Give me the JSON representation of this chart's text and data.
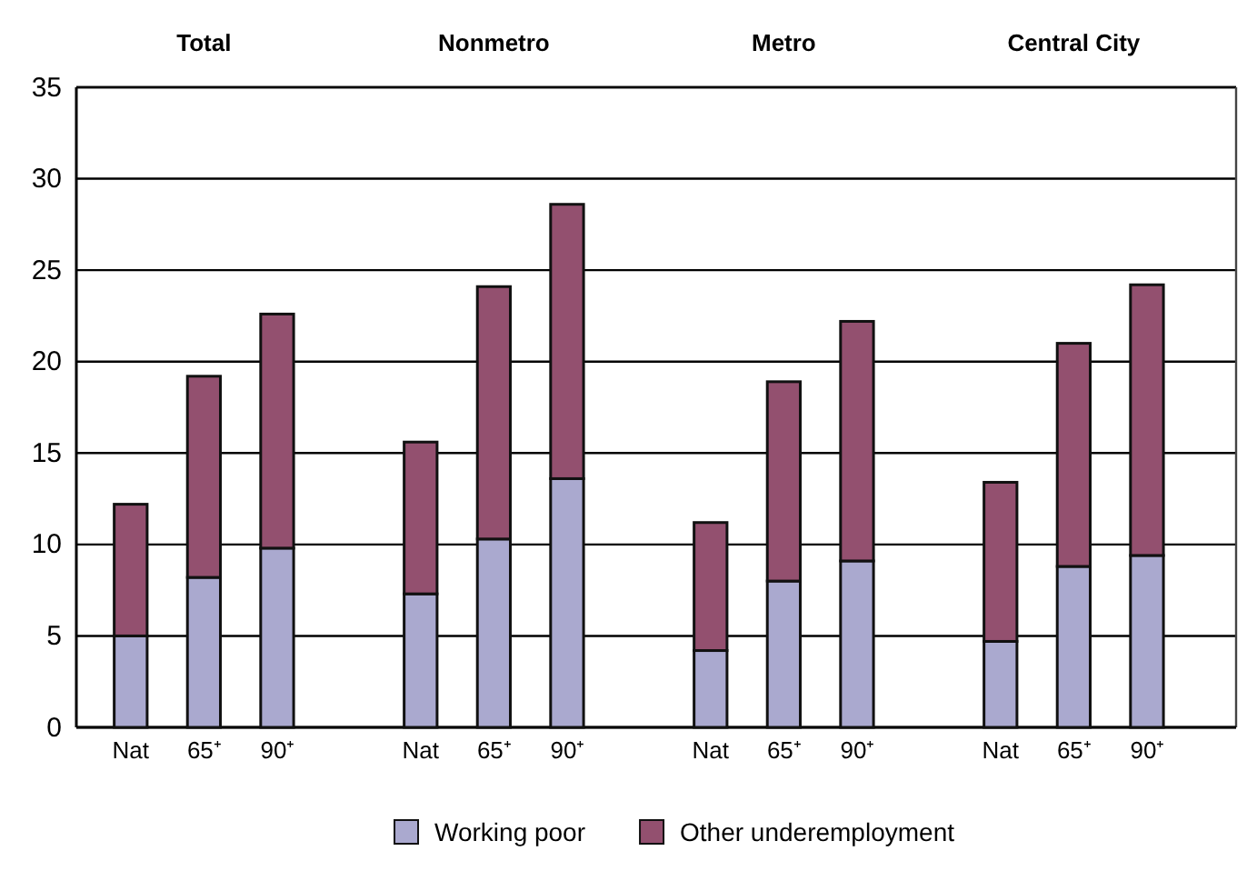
{
  "chart_data": [
    {
      "type": "bar",
      "title": "Total",
      "categories": [
        "Nat",
        "65⁺",
        "90⁺"
      ],
      "stacked": true,
      "ylim": [
        0,
        35
      ],
      "yticks": [
        0,
        5,
        10,
        15,
        20,
        25,
        30,
        35
      ],
      "grid": "y",
      "legend": "bottom",
      "series": [
        {
          "name": "Working poor",
          "color": "#aaa9cf",
          "values": [
            5.0,
            8.2,
            9.8
          ]
        },
        {
          "name": "Other underemployment",
          "color": "#93506f",
          "values": [
            7.2,
            11.0,
            12.8
          ]
        }
      ]
    },
    {
      "type": "bar",
      "title": "Nonmetro",
      "categories": [
        "Nat",
        "65⁺",
        "90⁺"
      ],
      "stacked": true,
      "ylim": [
        0,
        35
      ],
      "yticks": [
        0,
        5,
        10,
        15,
        20,
        25,
        30,
        35
      ],
      "grid": "y",
      "tick_labels": "x",
      "series": [
        {
          "color": "#aaa9cf",
          "values": [
            7.3,
            10.3,
            13.6
          ]
        },
        {
          "color": "#93506f",
          "values": [
            8.3,
            13.8,
            15.0
          ]
        }
      ]
    },
    {
      "type": "bar",
      "title": "Metro",
      "categories": [
        "Nat",
        "65⁺",
        "90⁺"
      ],
      "stacked": true,
      "ylim": [
        0,
        35
      ],
      "yticks": [
        0,
        5,
        10,
        15,
        20,
        25,
        30,
        35
      ],
      "grid": "y",
      "tick_labels": "x",
      "series": [
        {
          "color": "#aaa9cf",
          "values": [
            4.2,
            8.0,
            9.1
          ]
        },
        {
          "color": "#93506f",
          "values": [
            7.0,
            10.9,
            13.1
          ]
        }
      ]
    },
    {
      "type": "bar",
      "title": "Central City",
      "categories": [
        "Nat",
        "65⁺",
        "90⁺"
      ],
      "stacked": true,
      "ylim": [
        0,
        35
      ],
      "yticks": [
        0,
        5,
        10,
        15,
        20,
        25,
        30,
        35
      ],
      "grid": "y",
      "tick_labels": "x",
      "series": [
        {
          "color": "#aaa9cf",
          "values": [
            4.7,
            8.8,
            9.4
          ]
        },
        {
          "color": "#93506f",
          "values": [
            8.7,
            12.2,
            14.8
          ]
        }
      ]
    }
  ]
}
